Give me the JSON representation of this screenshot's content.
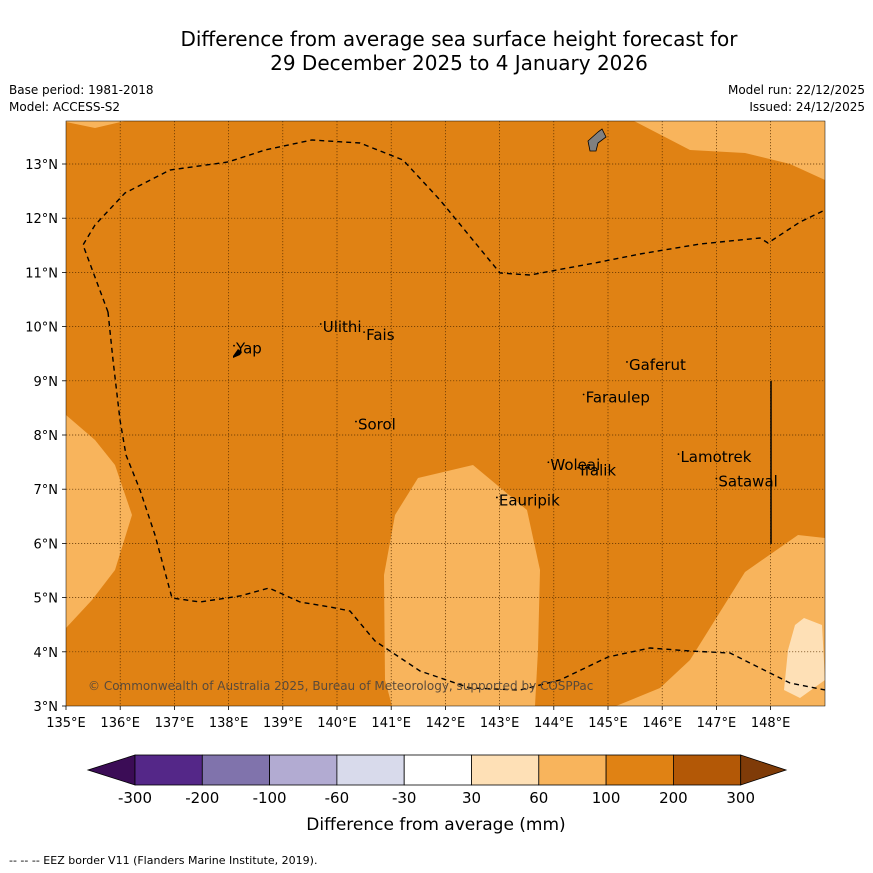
{
  "header": {
    "title_line1": "Difference from average sea surface height forecast for",
    "title_line2": "29 December 2025 to 4 January 2026",
    "base_period": "Base period: 1981-2018",
    "model": "Model: ACCESS-S2",
    "model_run": "Model run: 22/12/2025",
    "issued": "Issued: 24/12/2025"
  },
  "map": {
    "lon_labels": [
      "135°E",
      "136°E",
      "137°E",
      "138°E",
      "139°E",
      "140°E",
      "141°E",
      "142°E",
      "143°E",
      "144°E",
      "145°E",
      "146°E",
      "147°E",
      "148°E"
    ],
    "lat_labels": [
      "13°N",
      "12°N",
      "11°N",
      "10°N",
      "9°N",
      "8°N",
      "7°N",
      "6°N",
      "5°N",
      "4°N",
      "3°N"
    ],
    "places": [
      {
        "name": "Yap",
        "lon": 138.1,
        "lat": 9.5
      },
      {
        "name": "Ulithi",
        "lon": 139.7,
        "lat": 9.9
      },
      {
        "name": "Fais",
        "lon": 140.5,
        "lat": 9.75
      },
      {
        "name": "Gaferut",
        "lon": 145.35,
        "lat": 9.2
      },
      {
        "name": "Faraulep",
        "lon": 144.55,
        "lat": 8.6
      },
      {
        "name": "Sorol",
        "lon": 140.35,
        "lat": 8.1
      },
      {
        "name": "Woleai",
        "lon": 143.9,
        "lat": 7.35
      },
      {
        "name": "Ifalik",
        "lon": 144.45,
        "lat": 7.25
      },
      {
        "name": "Lamotrek",
        "lon": 146.3,
        "lat": 7.5
      },
      {
        "name": "Satawal",
        "lon": 147.0,
        "lat": 7.05
      },
      {
        "name": "Eauripik",
        "lon": 142.95,
        "lat": 6.7
      }
    ],
    "copyright": "© Commonwealth of Australia 2025, Bureau of Meteorology, supported by COSPPac",
    "colors": {
      "fill_100_200": "#E08214",
      "fill_60_100": "#F8B45C",
      "fill_30_60": "#FEE0B6",
      "land": "#808080"
    }
  },
  "colorbar": {
    "labels": [
      "-300",
      "-200",
      "-100",
      "-60",
      "-30",
      "30",
      "60",
      "100",
      "200",
      "300"
    ],
    "colors": [
      "#3B0C56",
      "#542788",
      "#8073AC",
      "#B2ABD2",
      "#D8DAEB",
      "#FFFFFF",
      "#FEE0B6",
      "#F8B45C",
      "#E08214",
      "#B35806",
      "#7F3B08"
    ],
    "label": "Difference from average (mm)"
  },
  "footer": {
    "eez_note": "--  --  -- EEZ border V11 (Flanders Marine Institute, 2019)."
  }
}
